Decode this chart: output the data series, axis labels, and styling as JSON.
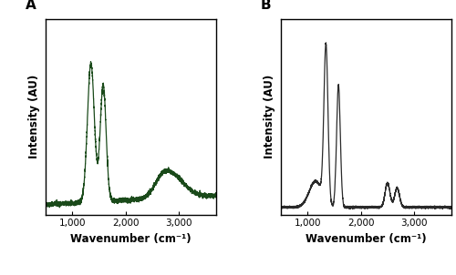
{
  "panel_A_label": "A",
  "panel_B_label": "B",
  "color_A": "#1a4a1a",
  "color_B": "#2a2a2a",
  "xlabel": "Wavenumber (cm⁻¹)",
  "ylabel": "Intensity (AU)",
  "xlim": [
    500,
    3700
  ],
  "xticks": [
    1000,
    2000,
    3000
  ],
  "xticklabels": [
    "1,000",
    "2,000",
    "3,000"
  ],
  "xlabel_fontsize": 8.5,
  "ylabel_fontsize": 8.5,
  "label_fontweight": "bold",
  "panel_label_fontsize": 11,
  "panel_label_fontweight": "bold",
  "linewidth": 0.9,
  "noise_A": 0.003,
  "noise_B": 0.003
}
